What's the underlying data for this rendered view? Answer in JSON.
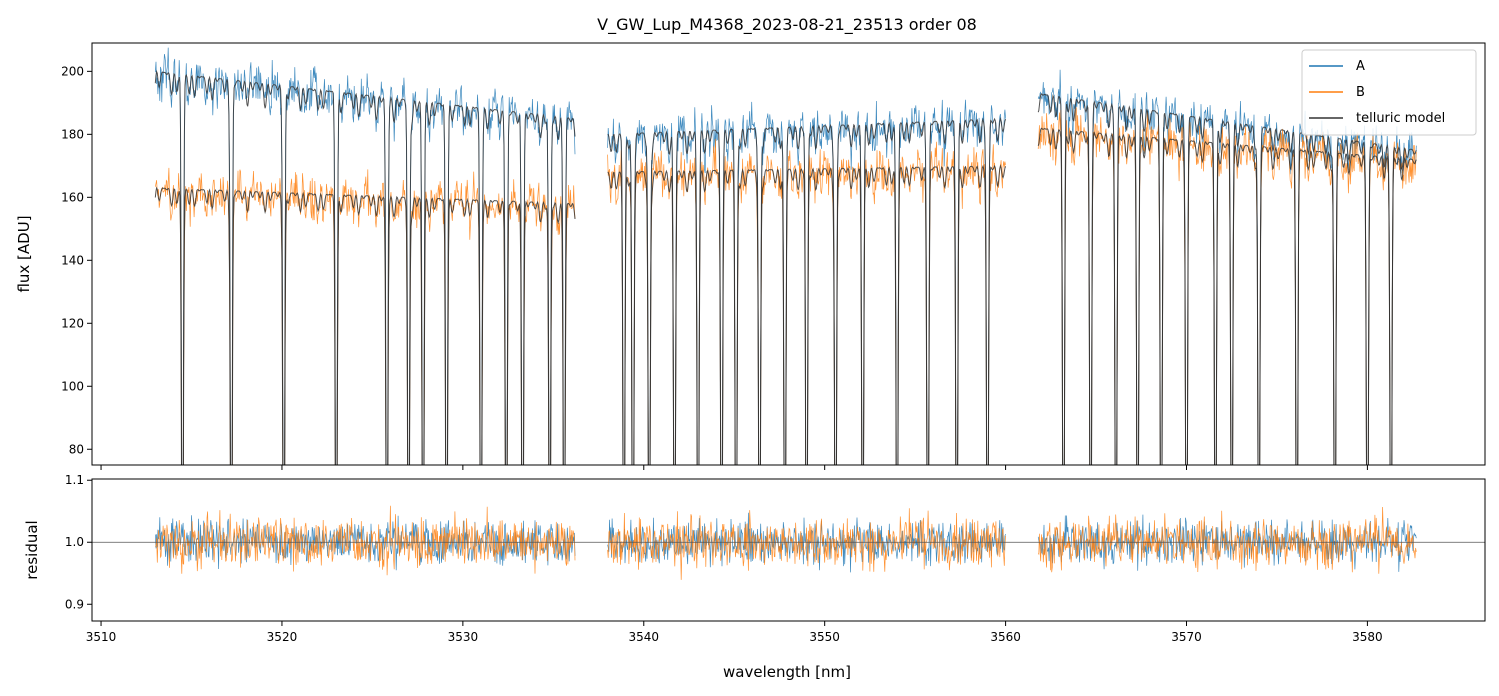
{
  "title": "V_GW_Lup_M4368_2023-08-21_23513  order 08",
  "colors": {
    "A": "#1f77b4",
    "B": "#ff7f0e",
    "model": "#333333"
  },
  "chart_data": [
    {
      "type": "line",
      "panel": "top",
      "ylabel": "flux [ADU]",
      "xlim": [
        3509.5,
        3586.5
      ],
      "ylim": [
        75,
        209
      ],
      "yticks": [
        80,
        100,
        120,
        140,
        160,
        180,
        200
      ],
      "xticks": [
        3510,
        3520,
        3530,
        3540,
        3550,
        3560,
        3570,
        3580
      ],
      "segments": [
        [
          3513.0,
          3536.2
        ],
        [
          3538.0,
          3560.0
        ],
        [
          3561.8,
          3582.7
        ]
      ],
      "series": [
        {
          "name": "A",
          "continuum_by_segment": [
            [
              200,
              185
            ],
            [
              180,
              185
            ],
            [
              193,
              175
            ]
          ]
        },
        {
          "name": "B",
          "continuum_by_segment": [
            [
              163,
              158
            ],
            [
              168,
              170
            ],
            [
              182,
              172
            ]
          ]
        },
        {
          "name": "telluric model",
          "continuum": "model of A and B"
        }
      ],
      "telluric_lines_nm": [
        3514.5,
        3517.2,
        3520.1,
        3523.0,
        3525.8,
        3527.0,
        3527.8,
        3529.1,
        3531.0,
        3532.4,
        3533.3,
        3534.8,
        3535.6,
        3538.9,
        3539.4,
        3540.3,
        3541.7,
        3543.0,
        3544.3,
        3545.1,
        3546.4,
        3547.8,
        3549.0,
        3550.6,
        3552.1,
        3554.0,
        3555.7,
        3557.3,
        3559.0,
        3563.2,
        3564.7,
        3566.1,
        3567.3,
        3568.6,
        3570.0,
        3571.6,
        3572.5,
        3574.0,
        3576.1,
        3578.2,
        3580.0,
        3581.3
      ],
      "legend": {
        "entries": [
          "A",
          "B",
          "telluric model"
        ],
        "position": "top-right"
      }
    },
    {
      "type": "line",
      "panel": "bottom",
      "xlabel": "wavelength [nm]",
      "ylabel": "residual",
      "xlim": [
        3509.5,
        3586.5
      ],
      "ylim": [
        0.873,
        1.102
      ],
      "yticks": [
        0.9,
        1.0,
        1.1
      ],
      "xticks": [
        3510,
        3520,
        3530,
        3540,
        3550,
        3560,
        3570,
        3580
      ],
      "reference_line": 1.0,
      "series": [
        {
          "name": "A",
          "center": 1.0,
          "noise": 0.035
        },
        {
          "name": "B",
          "center": 1.0,
          "noise": 0.04
        }
      ]
    }
  ],
  "tick_labels": {
    "top_y": [
      "80",
      "100",
      "120",
      "140",
      "160",
      "180",
      "200"
    ],
    "bottom_y": [
      "0.9",
      "1.0",
      "1.1"
    ],
    "x": [
      "3510",
      "3520",
      "3530",
      "3540",
      "3550",
      "3560",
      "3570",
      "3580"
    ]
  }
}
